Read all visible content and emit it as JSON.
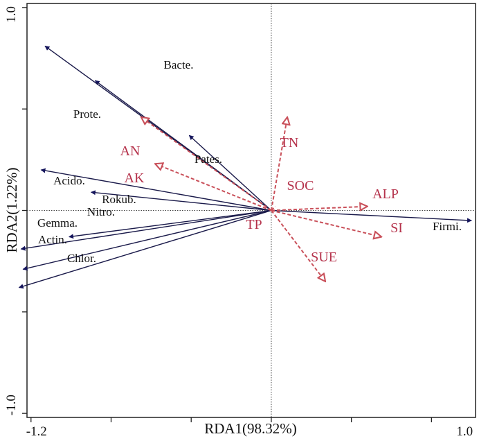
{
  "chart_data": {
    "type": "scatter",
    "subtype": "rda-biplot",
    "title": "",
    "xlabel": "RDA1(98.32%)",
    "ylabel": "RDA2(1.22%)",
    "xlim": [
      -1.22,
      1.02
    ],
    "ylim": [
      -1.02,
      1.02
    ],
    "x_tick_labels": [
      {
        "value": -1.2,
        "label": "-1.2"
      },
      {
        "value": 1.0,
        "label": "1.0"
      }
    ],
    "y_tick_labels": [
      {
        "value": 1.0,
        "label": "1.0"
      },
      {
        "value": -1.0,
        "label": "-1.0"
      }
    ],
    "reference_lines": {
      "x": 0,
      "y": 0,
      "style": "dotted"
    },
    "colors": {
      "species_arrow": "#1a1a4a",
      "species_head": "#15155c",
      "env_arrow": "#c9505a",
      "env_label": "#b5324b"
    },
    "series": [
      {
        "vectors": [
          {
            "label": "Bacte.",
            "x": -0.88,
            "y": 0.64
          },
          {
            "label": "Prote.",
            "x": -1.13,
            "y": 0.81
          },
          {
            "label": "Pates.",
            "x": -0.41,
            "y": 0.37
          },
          {
            "label": "Acido.",
            "x": -1.15,
            "y": 0.2
          },
          {
            "label": "Rokub.",
            "x": -0.9,
            "y": 0.09
          },
          {
            "label": "Nitro.",
            "x": -1.01,
            "y": -0.13
          },
          {
            "label": "Gemma.",
            "x": -1.25,
            "y": -0.19
          },
          {
            "label": "Actin.",
            "x": -1.24,
            "y": -0.29
          },
          {
            "label": "Chlor.",
            "x": -1.26,
            "y": -0.38
          },
          {
            "label": "Firmi.",
            "x": 1.0,
            "y": -0.05
          }
        ]
      },
      {
        "vectors": [
          {
            "label": "AN",
            "x": -0.65,
            "y": 0.46
          },
          {
            "label": "AK",
            "x": -0.58,
            "y": 0.23
          },
          {
            "label": "TN",
            "x": 0.08,
            "y": 0.46
          },
          {
            "label": "SOC",
            "x": 0.02,
            "y": 0.02
          },
          {
            "label": "TP",
            "x": 0.0,
            "y": 0.0
          },
          {
            "label": "ALP",
            "x": 0.48,
            "y": 0.02
          },
          {
            "label": "SI",
            "x": 0.55,
            "y": -0.13
          },
          {
            "label": "SUE",
            "x": 0.27,
            "y": -0.35
          }
        ]
      }
    ]
  }
}
